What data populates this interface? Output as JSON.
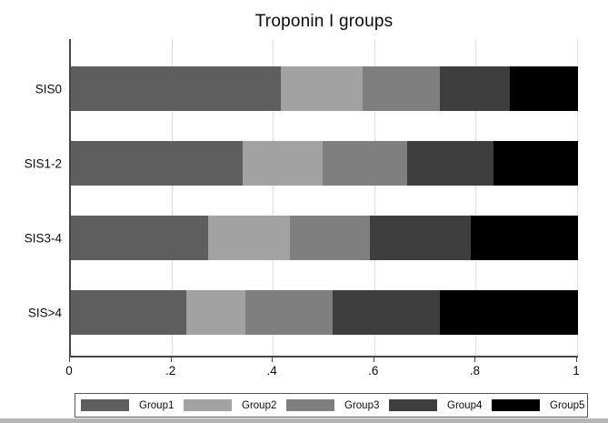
{
  "chart_data": {
    "type": "bar",
    "orientation": "horizontal",
    "stacked": true,
    "title": "Troponin I groups",
    "categories": [
      "SIS0",
      "SIS1-2",
      "SIS3-4",
      "SIS>4"
    ],
    "series": [
      {
        "name": "Group1",
        "color": "#5e5e5e",
        "values": [
          0.414,
          0.339,
          0.27,
          0.228
        ]
      },
      {
        "name": "Group2",
        "color": "#a2a2a2",
        "values": [
          0.162,
          0.158,
          0.162,
          0.116
        ]
      },
      {
        "name": "Group3",
        "color": "#7f7f7f",
        "values": [
          0.151,
          0.166,
          0.157,
          0.172
        ]
      },
      {
        "name": "Group4",
        "color": "#3e3e3e",
        "values": [
          0.139,
          0.171,
          0.199,
          0.212
        ]
      },
      {
        "name": "Group5",
        "color": "#000000",
        "values": [
          0.134,
          0.166,
          0.212,
          0.272
        ]
      }
    ],
    "xlim": [
      0,
      1
    ],
    "x_ticks": [
      0,
      0.2,
      0.4,
      0.6,
      0.8,
      1
    ],
    "x_tick_labels": [
      "0",
      ".2",
      ".4",
      ".6",
      ".8",
      "1"
    ],
    "grid": true,
    "legend_position": "bottom",
    "legend_labels": [
      "Group1",
      "Group2",
      "Group3",
      "Group4",
      "Group5"
    ]
  },
  "colors": {
    "axis": "#464646",
    "gridline": "#dedede",
    "legend_border": "#555555",
    "bottom_strip": "#b5b5b5",
    "background": "#ffffff",
    "text": "#000000"
  }
}
